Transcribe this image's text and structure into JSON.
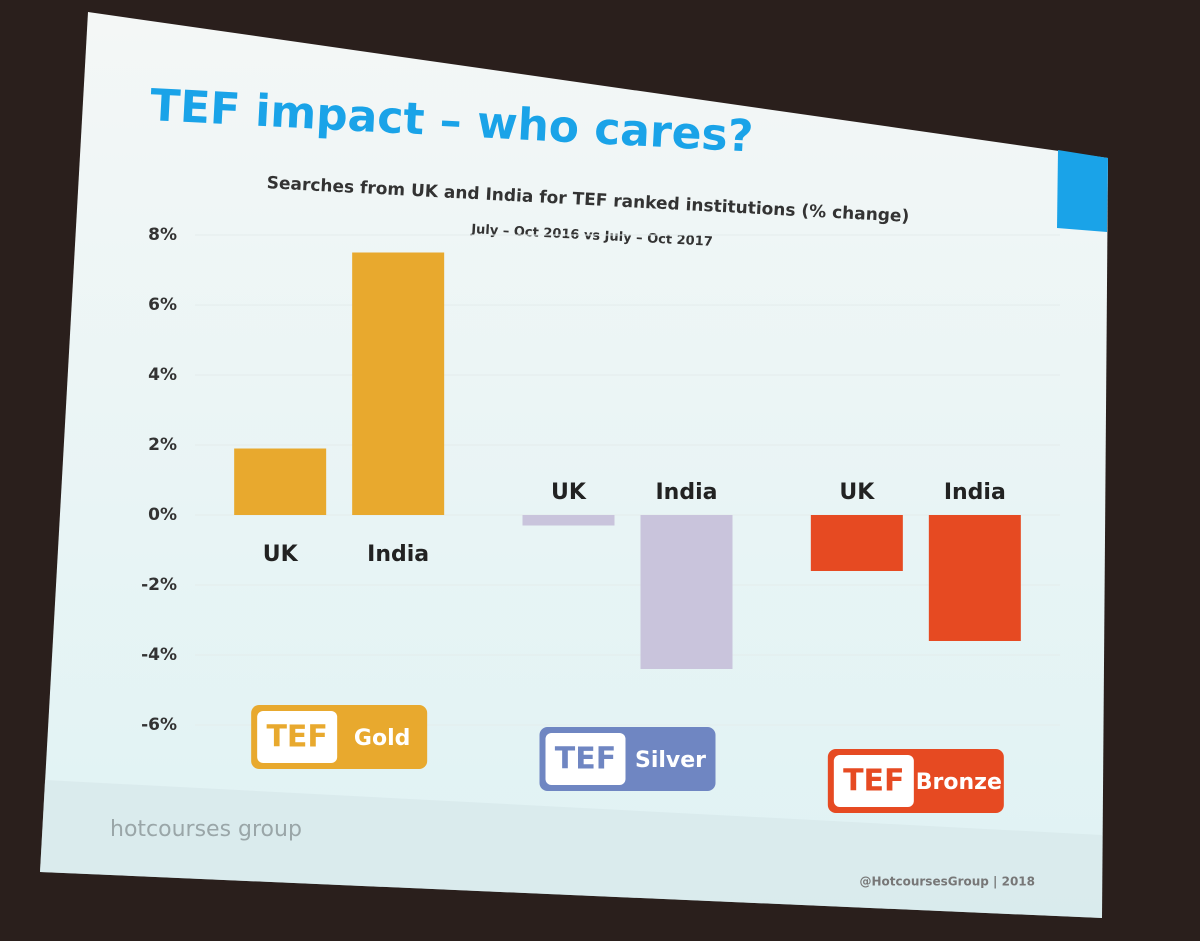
{
  "chart_data": {
    "type": "bar",
    "title": "TEF impact – who cares?",
    "subtitle": "Searches from UK and India for TEF ranked institutions (% change)",
    "period": "July – Oct 2016 vs July – Oct 2017",
    "ylim": [
      -6,
      8
    ],
    "yticks": [
      {
        "value": 8,
        "label": "8%"
      },
      {
        "value": 6,
        "label": "6%"
      },
      {
        "value": 4,
        "label": "4%"
      },
      {
        "value": 2,
        "label": "2%"
      },
      {
        "value": 0,
        "label": "0%"
      },
      {
        "value": -2,
        "label": "-2%"
      },
      {
        "value": -4,
        "label": "-4%"
      },
      {
        "value": -6,
        "label": "-6%"
      }
    ],
    "grid": true,
    "groups": [
      {
        "badge": "TEF",
        "name": "Gold",
        "color": "#e8a92e",
        "categories": [
          "UK",
          "India"
        ],
        "values": [
          1.9,
          7.5
        ]
      },
      {
        "badge": "TEF",
        "name": "Silver",
        "color": "#c9c4dc",
        "badge_color": "#6f86c2",
        "categories": [
          "UK",
          "India"
        ],
        "values": [
          -0.3,
          -4.4
        ]
      },
      {
        "badge": "TEF",
        "name": "Bronze",
        "color": "#e64a22",
        "categories": [
          "UK",
          "India"
        ],
        "values": [
          -1.6,
          -3.6
        ]
      }
    ]
  },
  "brand": "hotcourses group",
  "footer": "@HotcoursesGroup | 2018"
}
